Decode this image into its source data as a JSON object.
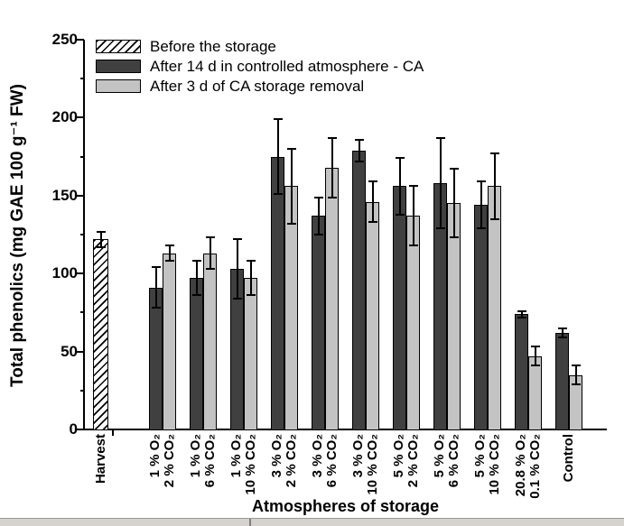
{
  "chart_data": {
    "type": "bar",
    "title": "",
    "xlabel": "Atmospheres of storage",
    "ylabel": "Total phenolics (mg GAE 100 g⁻¹ FW)",
    "ylim": [
      0,
      250
    ],
    "yticks": [
      0,
      50,
      100,
      150,
      200,
      250
    ],
    "grid": false,
    "legend_position": "top-left-inside",
    "legend": [
      {
        "label": "Before the storage",
        "swatch": "hatch"
      },
      {
        "label": "After 14 d in controlled atmosphere - CA",
        "swatch": "#404040"
      },
      {
        "label": "After 3 d of CA storage removal",
        "swatch": "#c3c3c3"
      }
    ],
    "harvest": {
      "category": "Harvest",
      "series": "Before the storage",
      "value": 122,
      "error": 5
    },
    "categories": [
      "1 % O₂\n2 % CO₂",
      "1 % O₂\n6 % CO₂",
      "1 % O₂\n10 % CO₂",
      "3 % O₂\n2 % CO₂",
      "3 % O₂\n6 % CO₂",
      "3 % O₂\n10 % CO₂",
      "5 % O₂\n2 % CO₂",
      "5 % O₂\n6 % CO₂",
      "5 % O₂\n10 % CO₂",
      "20.8 % O₂\n0.1 % CO₂",
      "Control"
    ],
    "series": [
      {
        "name": "After 14 d in controlled atmosphere - CA",
        "color": "#404040",
        "values": [
          91,
          97,
          103,
          175,
          137,
          179,
          156,
          158,
          144,
          74,
          62
        ],
        "errors": [
          13,
          11,
          19,
          24,
          12,
          7,
          18,
          29,
          15,
          2,
          3
        ]
      },
      {
        "name": "After 3 d of CA storage removal",
        "color": "#c3c3c3",
        "values": [
          113,
          113,
          97,
          156,
          168,
          146,
          137,
          145,
          156,
          47,
          35
        ],
        "errors": [
          5,
          10,
          11,
          24,
          19,
          13,
          19,
          22,
          21,
          6,
          6
        ]
      }
    ],
    "hatch_color": "#000000",
    "background": "#ffffff"
  }
}
